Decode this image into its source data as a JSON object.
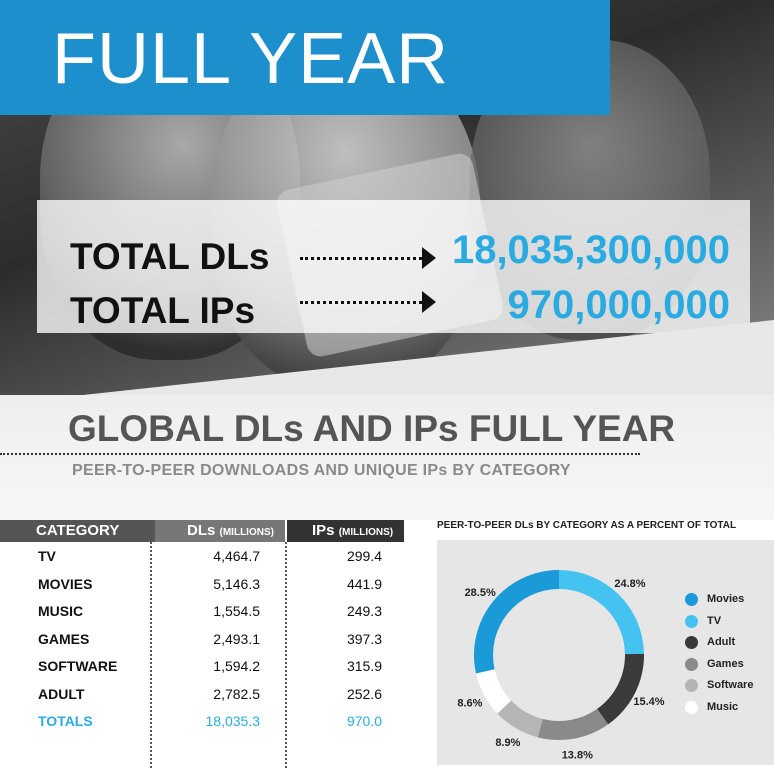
{
  "header": {
    "title": "FULL YEAR"
  },
  "totals": {
    "dls_label": "TOTAL DLs",
    "dls_value": "18,035,300,000",
    "ips_label": "TOTAL IPs",
    "ips_value": "970,000,000"
  },
  "section": {
    "title": "GLOBAL DLs AND IPs FULL YEAR",
    "subtitle": "PEER-TO-PEER DOWNLOADS AND UNIQUE IPs BY CATEGORY"
  },
  "colors": {
    "accent": "#29abe2",
    "band": "#1d8fcc",
    "header_dark": "#333333",
    "header_mid": "#555555"
  },
  "chart_data": [
    {
      "type": "table",
      "columns": [
        "CATEGORY",
        "DLs",
        "(MILLIONS)",
        "IPs",
        "(MILLIONS)"
      ],
      "column_headers": {
        "category": "CATEGORY",
        "dls": "DLs",
        "dls_unit": "(MILLIONS)",
        "ips": "IPs",
        "ips_unit": "(MILLIONS)"
      },
      "rows": [
        {
          "category": "TV",
          "dls": "4,464.7",
          "ips": "299.4"
        },
        {
          "category": "MOVIES",
          "dls": "5,146.3",
          "ips": "441.9"
        },
        {
          "category": "MUSIC",
          "dls": "1,554.5",
          "ips": "249.3"
        },
        {
          "category": "GAMES",
          "dls": "2,493.1",
          "ips": "397.3"
        },
        {
          "category": "SOFTWARE",
          "dls": "1,594.2",
          "ips": "315.9"
        },
        {
          "category": "ADULT",
          "dls": "2,782.5",
          "ips": "252.6"
        }
      ],
      "totals_row": {
        "category": "TOTALS",
        "dls": "18,035.3",
        "ips": "970.0"
      }
    },
    {
      "type": "pie",
      "style": "donut",
      "title": "PEER-TO-PEER DLs BY CATEGORY AS A PERCENT OF TOTAL",
      "legend_position": "right",
      "slices": [
        {
          "label": "Movies",
          "value": 28.5,
          "display": "28.5%",
          "color": "#1a9ad6"
        },
        {
          "label": "TV",
          "value": 24.8,
          "display": "24.8%",
          "color": "#45c3f0"
        },
        {
          "label": "Adult",
          "value": 15.4,
          "display": "15.4%",
          "color": "#3a3a3a"
        },
        {
          "label": "Games",
          "value": 13.8,
          "display": "13.8%",
          "color": "#8a8a8a"
        },
        {
          "label": "Software",
          "value": 8.9,
          "display": "8.9%",
          "color": "#b5b5b5"
        },
        {
          "label": "Music",
          "value": 8.6,
          "display": "8.6%",
          "color": "#ffffff"
        }
      ]
    }
  ]
}
